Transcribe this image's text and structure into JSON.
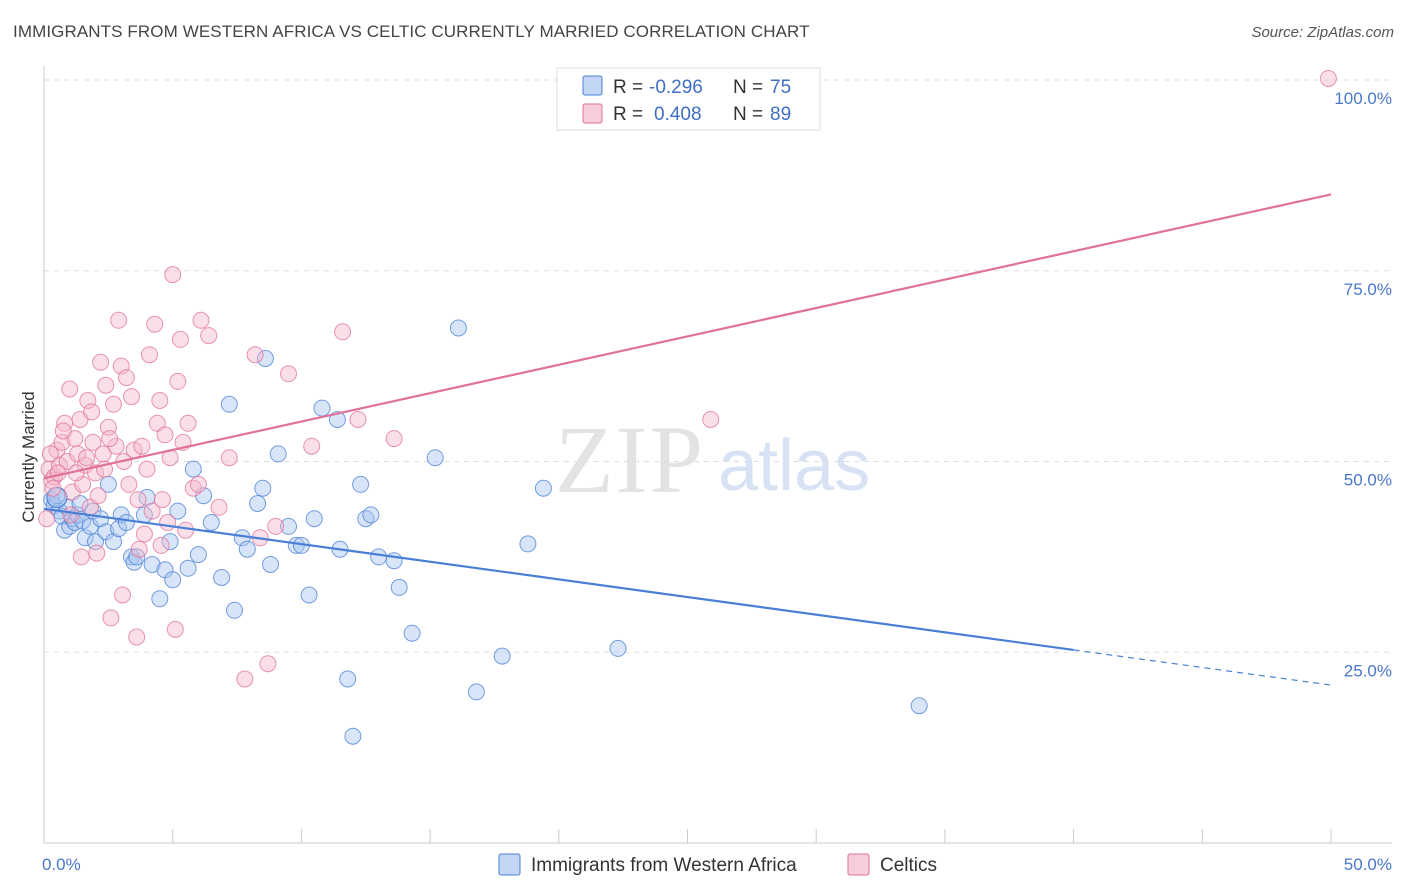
{
  "header": {
    "title": "IMMIGRANTS FROM WESTERN AFRICA VS CELTIC CURRENTLY MARRIED CORRELATION CHART",
    "source": "Source: ZipAtlas.com"
  },
  "watermark": {
    "zip": "ZIP",
    "atlas": "atlas"
  },
  "legend": {
    "r_label": "R =",
    "n_label": "N =",
    "series": [
      {
        "r": "-0.296",
        "n": "75"
      },
      {
        "r": "0.408",
        "n": "89"
      }
    ]
  },
  "chart_data": {
    "type": "scatter",
    "title": "IMMIGRANTS FROM WESTERN AFRICA VS CELTIC CURRENTLY MARRIED CORRELATION CHART",
    "xlabel": "",
    "ylabel": "Currently Married",
    "xlim": [
      0,
      50
    ],
    "ylim": [
      5,
      102
    ],
    "x_tick_labels": [
      "0.0%",
      "50.0%"
    ],
    "y_ticks": [
      25,
      50,
      75,
      100
    ],
    "y_tick_labels": [
      "25.0%",
      "50.0%",
      "75.0%",
      "100.0%"
    ],
    "colors": {
      "blue": "#4a7fd6",
      "blue_fill": "#a9c5f0",
      "pink": "#e0719a",
      "pink_fill": "#f5b8cb",
      "tick": "#4a78c8"
    },
    "series": [
      {
        "name": "Immigrants from Western Africa",
        "color": "#4a7fd6",
        "trend": {
          "x0": 0,
          "y0": 43.8,
          "x1": 40,
          "y1": 25.3,
          "dash_to_x": 50,
          "dash_to_y": 20.7
        },
        "points": [
          [
            0.3,
            45.0
          ],
          [
            0.4,
            44.2
          ],
          [
            0.5,
            45.5
          ],
          [
            0.6,
            43.5
          ],
          [
            0.7,
            42.8
          ],
          [
            0.8,
            41.0
          ],
          [
            0.9,
            44.0
          ],
          [
            1.0,
            41.5
          ],
          [
            1.1,
            42.5
          ],
          [
            1.2,
            42.0
          ],
          [
            1.3,
            43.0
          ],
          [
            1.4,
            44.5
          ],
          [
            1.5,
            42.2
          ],
          [
            1.6,
            40.0
          ],
          [
            1.8,
            41.5
          ],
          [
            1.9,
            43.5
          ],
          [
            2.0,
            39.5
          ],
          [
            2.2,
            42.5
          ],
          [
            2.4,
            40.8
          ],
          [
            2.5,
            47.0
          ],
          [
            2.7,
            39.5
          ],
          [
            2.9,
            41.2
          ],
          [
            3.0,
            43.0
          ],
          [
            3.2,
            42.0
          ],
          [
            3.4,
            37.5
          ],
          [
            3.5,
            36.8
          ],
          [
            3.6,
            37.5
          ],
          [
            3.9,
            43.0
          ],
          [
            4.0,
            45.3
          ],
          [
            4.2,
            36.5
          ],
          [
            4.5,
            32.0
          ],
          [
            4.7,
            35.8
          ],
          [
            4.9,
            39.5
          ],
          [
            5.0,
            34.5
          ],
          [
            5.2,
            43.5
          ],
          [
            5.6,
            36.0
          ],
          [
            5.8,
            49.0
          ],
          [
            6.0,
            37.8
          ],
          [
            6.2,
            45.5
          ],
          [
            6.5,
            42.0
          ],
          [
            6.9,
            34.8
          ],
          [
            7.2,
            57.5
          ],
          [
            7.4,
            30.5
          ],
          [
            7.7,
            40.0
          ],
          [
            7.9,
            38.5
          ],
          [
            8.3,
            44.5
          ],
          [
            8.5,
            46.5
          ],
          [
            8.6,
            63.5
          ],
          [
            8.8,
            36.5
          ],
          [
            9.1,
            51.0
          ],
          [
            9.5,
            41.5
          ],
          [
            9.8,
            39.0
          ],
          [
            10.0,
            39.0
          ],
          [
            10.3,
            32.5
          ],
          [
            10.5,
            42.5
          ],
          [
            10.8,
            57.0
          ],
          [
            11.4,
            55.5
          ],
          [
            11.5,
            38.5
          ],
          [
            11.8,
            21.5
          ],
          [
            12.0,
            14.0
          ],
          [
            12.3,
            47.0
          ],
          [
            12.5,
            42.5
          ],
          [
            12.7,
            43.0
          ],
          [
            13.0,
            37.5
          ],
          [
            13.6,
            37.0
          ],
          [
            13.8,
            33.5
          ],
          [
            14.3,
            27.5
          ],
          [
            15.2,
            50.5
          ],
          [
            16.1,
            67.5
          ],
          [
            16.8,
            19.8
          ],
          [
            17.8,
            24.5
          ],
          [
            18.8,
            39.2
          ],
          [
            19.4,
            46.5
          ],
          [
            22.3,
            25.5
          ],
          [
            34.0,
            18.0
          ]
        ]
      },
      {
        "name": "Celtics",
        "color": "#e0719a",
        "trend": {
          "x0": 0,
          "y0": 47.8,
          "x1": 50,
          "y1": 85.0
        },
        "points": [
          [
            0.1,
            42.5
          ],
          [
            0.2,
            49.0
          ],
          [
            0.3,
            47.5
          ],
          [
            0.4,
            48.0
          ],
          [
            0.5,
            51.5
          ],
          [
            0.6,
            49.5
          ],
          [
            0.7,
            52.5
          ],
          [
            0.8,
            55.0
          ],
          [
            0.9,
            50.0
          ],
          [
            1.0,
            59.5
          ],
          [
            1.1,
            46.0
          ],
          [
            1.2,
            53.0
          ],
          [
            1.3,
            51.0
          ],
          [
            1.4,
            55.5
          ],
          [
            1.5,
            47.0
          ],
          [
            1.6,
            49.5
          ],
          [
            1.7,
            58.0
          ],
          [
            1.8,
            44.0
          ],
          [
            1.9,
            52.5
          ],
          [
            2.0,
            48.5
          ],
          [
            2.1,
            45.5
          ],
          [
            2.2,
            63.0
          ],
          [
            2.3,
            51.0
          ],
          [
            2.4,
            60.0
          ],
          [
            2.5,
            54.5
          ],
          [
            2.6,
            29.5
          ],
          [
            2.7,
            57.5
          ],
          [
            2.8,
            52.0
          ],
          [
            2.9,
            68.5
          ],
          [
            3.0,
            62.5
          ],
          [
            3.1,
            50.0
          ],
          [
            3.2,
            61.0
          ],
          [
            3.3,
            47.0
          ],
          [
            3.4,
            58.5
          ],
          [
            3.5,
            51.5
          ],
          [
            3.6,
            27.0
          ],
          [
            3.7,
            38.5
          ],
          [
            3.8,
            52.0
          ],
          [
            3.9,
            40.5
          ],
          [
            4.0,
            49.0
          ],
          [
            4.1,
            64.0
          ],
          [
            4.2,
            43.5
          ],
          [
            4.3,
            68.0
          ],
          [
            4.4,
            55.0
          ],
          [
            4.5,
            58.0
          ],
          [
            4.6,
            45.0
          ],
          [
            4.7,
            53.5
          ],
          [
            4.8,
            42.0
          ],
          [
            4.9,
            50.5
          ],
          [
            5.0,
            74.5
          ],
          [
            5.1,
            28.0
          ],
          [
            5.2,
            60.5
          ],
          [
            5.3,
            66.0
          ],
          [
            5.4,
            52.5
          ],
          [
            5.5,
            41.0
          ],
          [
            5.6,
            55.0
          ],
          [
            5.8,
            46.5
          ],
          [
            6.0,
            47.0
          ],
          [
            6.1,
            68.5
          ],
          [
            6.4,
            66.5
          ],
          [
            6.8,
            44.0
          ],
          [
            7.2,
            50.5
          ],
          [
            7.8,
            21.5
          ],
          [
            8.2,
            64.0
          ],
          [
            8.4,
            40.0
          ],
          [
            8.7,
            23.5
          ],
          [
            9.0,
            41.5
          ],
          [
            9.5,
            61.5
          ],
          [
            10.4,
            52.0
          ],
          [
            11.6,
            67.0
          ],
          [
            12.2,
            55.5
          ],
          [
            13.6,
            53.0
          ],
          [
            25.9,
            55.5
          ],
          [
            49.9,
            100.2
          ],
          [
            0.25,
            51.0
          ],
          [
            0.35,
            46.5
          ],
          [
            0.55,
            48.5
          ],
          [
            0.75,
            54.0
          ],
          [
            1.05,
            43.0
          ],
          [
            1.25,
            48.5
          ],
          [
            1.45,
            37.5
          ],
          [
            1.65,
            50.5
          ],
          [
            1.85,
            56.5
          ],
          [
            2.05,
            38.0
          ],
          [
            2.35,
            49.0
          ],
          [
            2.55,
            53.0
          ],
          [
            3.05,
            32.5
          ],
          [
            3.65,
            45.0
          ],
          [
            4.55,
            39.0
          ]
        ]
      }
    ],
    "bottom_legend": [
      "Immigrants from Western Africa",
      "Celtics"
    ]
  }
}
